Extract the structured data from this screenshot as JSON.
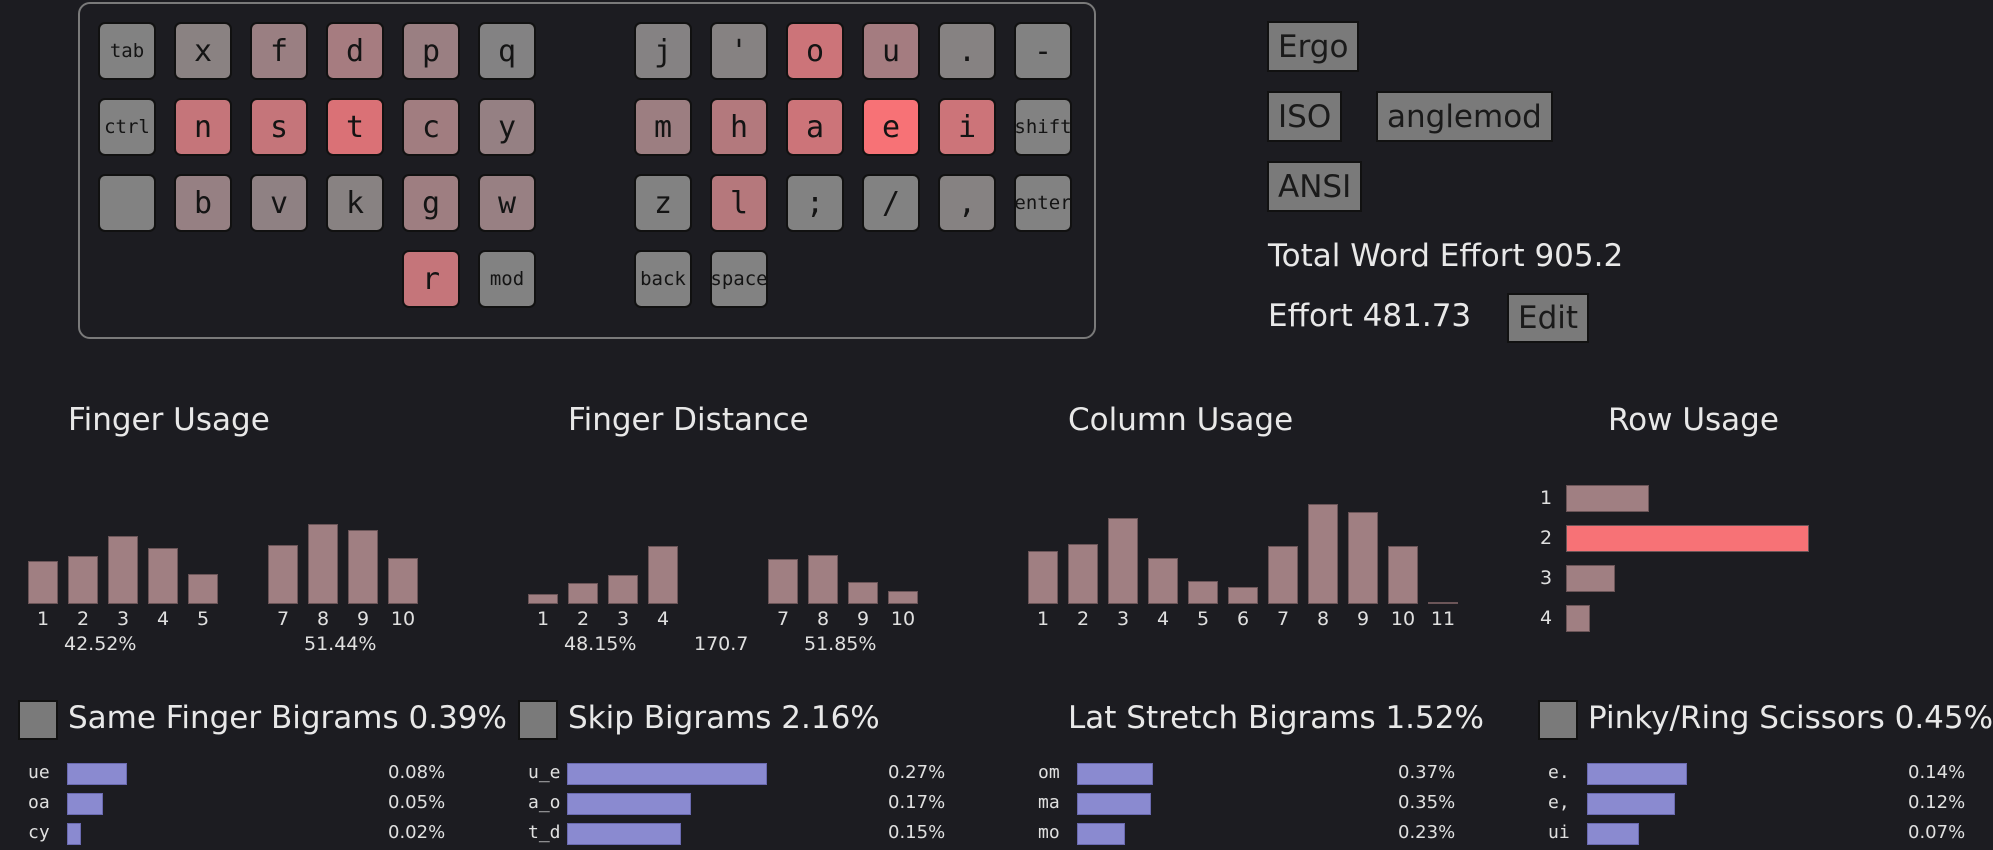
{
  "keyboard": {
    "keys": [
      {
        "label": "tab",
        "small": true,
        "color": "#828282",
        "col": 0,
        "row": 0
      },
      {
        "label": "x",
        "color": "#8a8282",
        "col": 1,
        "row": 0
      },
      {
        "label": "f",
        "color": "#9a7f82",
        "col": 2,
        "row": 0
      },
      {
        "label": "d",
        "color": "#a67c80",
        "col": 3,
        "row": 0
      },
      {
        "label": "p",
        "color": "#9a7f82",
        "col": 4,
        "row": 0
      },
      {
        "label": "q",
        "color": "#838283",
        "col": 5,
        "row": 0
      },
      {
        "label": "j",
        "color": "#858283",
        "col": 7,
        "row": 0
      },
      {
        "label": "'",
        "color": "#868282",
        "col": 8,
        "row": 0
      },
      {
        "label": "o",
        "color": "#cc7479",
        "col": 9,
        "row": 0
      },
      {
        "label": "u",
        "color": "#a47c80",
        "col": 10,
        "row": 0
      },
      {
        "label": ".",
        "color": "#868282",
        "col": 11,
        "row": 0
      },
      {
        "label": "-",
        "color": "#828282",
        "col": 12,
        "row": 0
      },
      {
        "label": "ctrl",
        "small": true,
        "color": "#828282",
        "col": 0,
        "row": 1
      },
      {
        "label": "n",
        "color": "#c5757a",
        "col": 1,
        "row": 1
      },
      {
        "label": "s",
        "color": "#c5757a",
        "col": 2,
        "row": 1
      },
      {
        "label": "t",
        "color": "#da7176",
        "col": 3,
        "row": 1
      },
      {
        "label": "c",
        "color": "#a17d80",
        "col": 4,
        "row": 1
      },
      {
        "label": "y",
        "color": "#958083",
        "col": 5,
        "row": 1
      },
      {
        "label": "m",
        "color": "#9c7e81",
        "col": 7,
        "row": 1
      },
      {
        "label": "h",
        "color": "#b3797d",
        "col": 8,
        "row": 1
      },
      {
        "label": "a",
        "color": "#cc7479",
        "col": 9,
        "row": 1
      },
      {
        "label": "e",
        "color": "#f77276",
        "col": 10,
        "row": 1
      },
      {
        "label": "i",
        "color": "#cc7479",
        "col": 11,
        "row": 1
      },
      {
        "label": "shift",
        "small": true,
        "color": "#828282",
        "col": 12,
        "row": 1
      },
      {
        "label": "",
        "color": "#828282",
        "col": 0,
        "row": 2
      },
      {
        "label": "b",
        "color": "#968083",
        "col": 1,
        "row": 2
      },
      {
        "label": "v",
        "color": "#8f8183",
        "col": 2,
        "row": 2
      },
      {
        "label": "k",
        "color": "#888282",
        "col": 3,
        "row": 2
      },
      {
        "label": "g",
        "color": "#9e7e81",
        "col": 4,
        "row": 2
      },
      {
        "label": "w",
        "color": "#988083",
        "col": 5,
        "row": 2
      },
      {
        "label": "z",
        "color": "#828282",
        "col": 7,
        "row": 2
      },
      {
        "label": "l",
        "color": "#b5787c",
        "col": 8,
        "row": 2
      },
      {
        "label": ";",
        "color": "#828282",
        "col": 9,
        "row": 2
      },
      {
        "label": "/",
        "color": "#828282",
        "col": 10,
        "row": 2
      },
      {
        "label": ",",
        "color": "#868282",
        "col": 11,
        "row": 2
      },
      {
        "label": "enter",
        "small": true,
        "color": "#828282",
        "col": 12,
        "row": 2
      },
      {
        "label": "r",
        "color": "#c5757a",
        "col": 4,
        "row": 3
      },
      {
        "label": "mod",
        "small": true,
        "color": "#828282",
        "col": 5,
        "row": 3
      },
      {
        "label": "back",
        "small": true,
        "color": "#828282",
        "col": 7,
        "row": 3
      },
      {
        "label": "space",
        "small": true,
        "color": "#828282",
        "col": 8,
        "row": 3
      }
    ]
  },
  "layout_buttons": {
    "ergo": "Ergo",
    "iso": "ISO",
    "anglemod": "anglemod",
    "ansi": "ANSI"
  },
  "stats": {
    "total_word_effort": "Total Word Effort 905.2",
    "effort": "Effort 481.73",
    "edit": "Edit"
  },
  "chart_data": [
    {
      "type": "bar",
      "title": "Finger Usage",
      "categories": [
        "1",
        "2",
        "3",
        "4",
        "5",
        "7",
        "8",
        "9",
        "10"
      ],
      "values": [
        7.0,
        7.8,
        11.1,
        9.1,
        4.9,
        9.6,
        13.0,
        12.1,
        7.5
      ],
      "group_labels": [
        "42.52%",
        "51.44%"
      ]
    },
    {
      "type": "bar",
      "title": "Finger Distance",
      "categories": [
        "1",
        "2",
        "3",
        "4",
        "7",
        "8",
        "9",
        "10"
      ],
      "values": [
        1.4,
        2.8,
        3.9,
        7.8,
        6.0,
        6.6,
        3.0,
        1.7
      ],
      "group_labels": [
        "48.15%",
        "170.7",
        "51.85%"
      ]
    },
    {
      "type": "bar",
      "title": "Column Usage",
      "categories": [
        "1",
        "2",
        "3",
        "4",
        "5",
        "6",
        "7",
        "8",
        "9",
        "10",
        "11"
      ],
      "values": [
        7.4,
        8.4,
        11.9,
        6.4,
        3.2,
        2.3,
        8.0,
        13.9,
        12.8,
        8.0,
        0.2
      ]
    },
    {
      "type": "bar",
      "orientation": "horizontal",
      "title": "Row Usage",
      "categories": [
        "1",
        "2",
        "3",
        "4"
      ],
      "values": [
        17,
        50,
        10,
        5
      ],
      "colors": [
        "#a07f82",
        "#f77276",
        "#a07f82",
        "#a07f82"
      ]
    }
  ],
  "bigrams": [
    {
      "title": "Same Finger Bigrams 0.39%",
      "checkbox": true,
      "rows": [
        {
          "label": "ue",
          "value": "0.08%",
          "frac": 0.3
        },
        {
          "label": "oa",
          "value": "0.05%",
          "frac": 0.18
        },
        {
          "label": "cy",
          "value": "0.02%",
          "frac": 0.07
        }
      ]
    },
    {
      "title": "Skip Bigrams 2.16%",
      "checkbox": true,
      "rows": [
        {
          "label": "u_e",
          "value": "0.27%",
          "frac": 1.0
        },
        {
          "label": "a_o",
          "value": "0.17%",
          "frac": 0.62
        },
        {
          "label": "t_d",
          "value": "0.15%",
          "frac": 0.57
        }
      ]
    },
    {
      "title": "Lat Stretch Bigrams 1.52%",
      "checkbox": false,
      "rows": [
        {
          "label": "om",
          "value": "0.37%",
          "frac": 0.38
        },
        {
          "label": "ma",
          "value": "0.35%",
          "frac": 0.37
        },
        {
          "label": "mo",
          "value": "0.23%",
          "frac": 0.24
        }
      ]
    },
    {
      "title": "Pinky/Ring Scissors 0.45%",
      "checkbox": true,
      "rows": [
        {
          "label": "e.",
          "value": "0.14%",
          "frac": 0.5
        },
        {
          "label": "e,",
          "value": "0.12%",
          "frac": 0.44
        },
        {
          "label": "ui",
          "value": "0.07%",
          "frac": 0.26
        }
      ]
    }
  ]
}
